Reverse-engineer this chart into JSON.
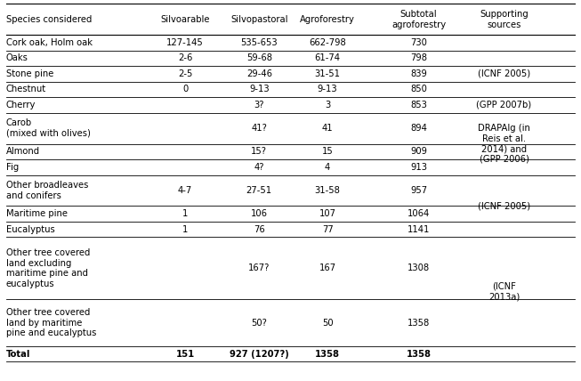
{
  "col_headers": [
    "Species considered",
    "Silvoarable",
    "Silvopastoral",
    "Agroforestry",
    "Subtotal\nagroforestry",
    "Supporting\nsources"
  ],
  "rows": [
    {
      "species": "Cork oak, Holm oak",
      "silvoarable": "127-145",
      "silvopastoral": "535-653",
      "agroforestry": "662-798",
      "subtotal": "730",
      "source_group": 0
    },
    {
      "species": "Oaks",
      "silvoarable": "2-6",
      "silvopastoral": "59-68",
      "agroforestry": "61-74",
      "subtotal": "798",
      "source_group": 1
    },
    {
      "species": "Stone pine",
      "silvoarable": "2-5",
      "silvopastoral": "29-46",
      "agroforestry": "31-51",
      "subtotal": "839",
      "source_group": 1
    },
    {
      "species": "Chestnut",
      "silvoarable": "0",
      "silvopastoral": "9-13",
      "agroforestry": "9-13",
      "subtotal": "850",
      "source_group": 1
    },
    {
      "species": "Cherry",
      "silvoarable": "",
      "silvopastoral": "3?",
      "agroforestry": "3",
      "subtotal": "853",
      "source_group": 2
    },
    {
      "species": "Carob\n(mixed with olives)",
      "silvoarable": "",
      "silvopastoral": "41?",
      "agroforestry": "41",
      "subtotal": "894",
      "source_group": 3
    },
    {
      "species": "Almond",
      "silvoarable": "",
      "silvopastoral": "15?",
      "agroforestry": "15",
      "subtotal": "909",
      "source_group": 3
    },
    {
      "species": "Fig",
      "silvoarable": "",
      "silvopastoral": "4?",
      "agroforestry": "4",
      "subtotal": "913",
      "source_group": 3
    },
    {
      "species": "Other broadleaves\nand conifers",
      "silvoarable": "4-7",
      "silvopastoral": "27-51",
      "agroforestry": "31-58",
      "subtotal": "957",
      "source_group": 4
    },
    {
      "species": "Maritime pine",
      "silvoarable": "1",
      "silvopastoral": "106",
      "agroforestry": "107",
      "subtotal": "1064",
      "source_group": 4
    },
    {
      "species": "Eucalyptus",
      "silvoarable": "1",
      "silvopastoral": "76",
      "agroforestry": "77",
      "subtotal": "1141",
      "source_group": 4
    },
    {
      "species": "Other tree covered\nland excluding\nmaritime pine and\neucalyptus",
      "silvoarable": "",
      "silvopastoral": "167?",
      "agroforestry": "167",
      "subtotal": "1308",
      "source_group": 5
    },
    {
      "species": "Other tree covered\nland by maritime\npine and eucalyptus",
      "silvoarable": "",
      "silvopastoral": "50?",
      "agroforestry": "50",
      "subtotal": "1358",
      "source_group": 5
    },
    {
      "species": "Total",
      "silvoarable": "151",
      "silvopastoral": "927 (1207?)",
      "agroforestry": "1358",
      "subtotal": "1358",
      "source_group": 6
    }
  ],
  "source_groups": {
    "0": {
      "text": "",
      "rows": [
        0
      ]
    },
    "1": {
      "text": "(ICNF 2005)",
      "rows": [
        1,
        2,
        3
      ]
    },
    "2": {
      "text": "(GPP 2007b)",
      "rows": [
        4
      ]
    },
    "3": {
      "text": "DRAPAlg (in\nReis et al.\n2014) and\n(GPP 2006)",
      "rows": [
        5,
        6,
        7
      ]
    },
    "4": {
      "text": "(ICNF 2005)",
      "rows": [
        8,
        9,
        10
      ]
    },
    "5": {
      "text": "(ICNF\n2013a)",
      "rows": [
        11,
        12
      ]
    },
    "6": {
      "text": "",
      "rows": [
        13
      ]
    }
  },
  "figsize": [
    6.53,
    4.28
  ],
  "dpi": 100,
  "bg_color": "#ffffff",
  "text_color": "#000000",
  "font_size": 7.2,
  "header_font_size": 7.2
}
